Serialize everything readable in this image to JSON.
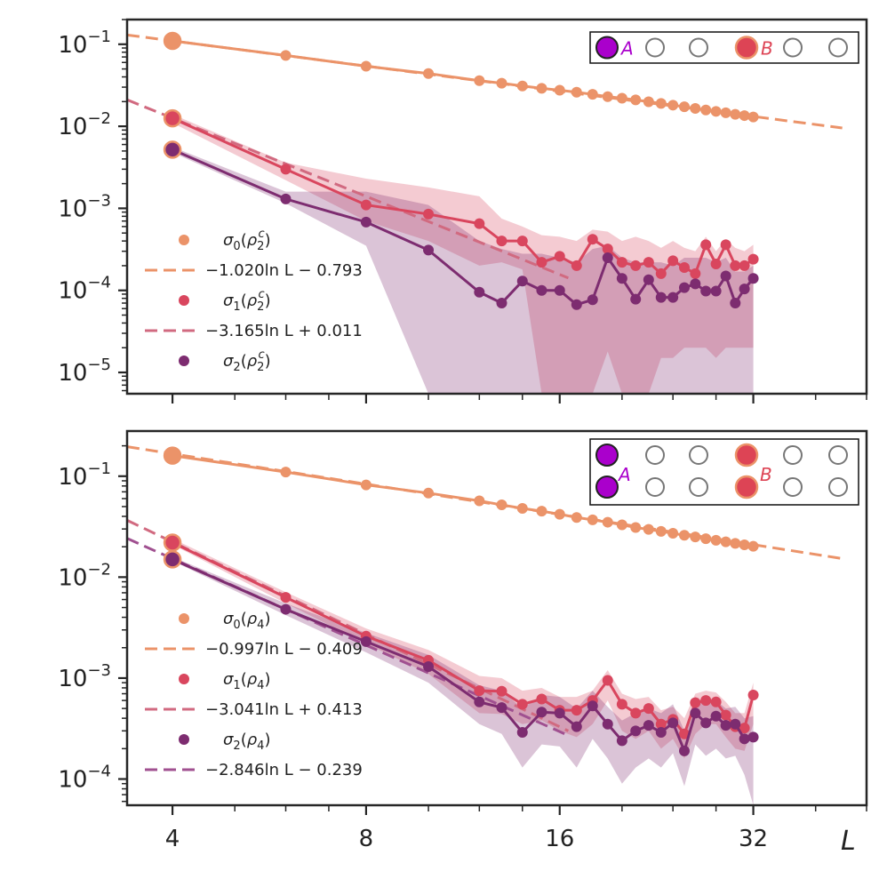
{
  "chart_data": [
    {
      "type": "line",
      "panel": "top",
      "xscale": "log2",
      "yscale": "log10",
      "xlim": [
        3.4,
        48
      ],
      "ylim": [
        5.5e-06,
        0.2
      ],
      "xlabel": "L",
      "xticks": [
        4,
        8,
        16,
        32
      ],
      "xtick_labels": [
        "4",
        "8",
        "16",
        "32"
      ],
      "yticks": [
        0.1,
        0.01,
        0.001,
        0.0001,
        1e-05
      ],
      "ytick_labels": [
        {
          "base": "10",
          "exp": "−1"
        },
        {
          "base": "10",
          "exp": "−2"
        },
        {
          "base": "10",
          "exp": "−3"
        },
        {
          "base": "10",
          "exp": "−4"
        },
        {
          "base": "10",
          "exp": "−5"
        }
      ],
      "series": [
        {
          "name": "σ0(ρ2c)",
          "color": "#eb9369",
          "x": [
            4,
            6,
            8,
            10,
            12,
            13,
            14,
            15,
            16,
            17,
            18,
            19,
            20,
            21,
            22,
            23,
            24,
            25,
            26,
            27,
            28,
            29,
            30,
            31,
            32
          ],
          "y": [
            0.11,
            0.073,
            0.054,
            0.044,
            0.036,
            0.0335,
            0.031,
            0.029,
            0.0275,
            0.026,
            0.0245,
            0.023,
            0.022,
            0.021,
            0.0199,
            0.019,
            0.0181,
            0.0173,
            0.0165,
            0.0158,
            0.0152,
            0.0146,
            0.014,
            0.0135,
            0.013
          ],
          "first_marker": "large"
        },
        {
          "name": "σ1(ρ2c)",
          "color": "#d9465e",
          "x": [
            4,
            6,
            8,
            10,
            12,
            13,
            14,
            15,
            16,
            17,
            18,
            19,
            20,
            21,
            22,
            23,
            24,
            25,
            26,
            27,
            28,
            29,
            30,
            31,
            32
          ],
          "y": [
            0.0125,
            0.003,
            0.0011,
            0.00085,
            0.00065,
            0.0004,
            0.0004,
            0.00022,
            0.00026,
            0.0002,
            0.00042,
            0.00032,
            0.00022,
            0.0002,
            0.00022,
            0.00016,
            0.00023,
            0.00019,
            0.00016,
            0.00036,
            0.00021,
            0.00036,
            0.0002,
            0.0002,
            0.00024
          ],
          "band_lower": [
            0.011,
            0.0022,
            0.0007,
            0.0004,
            0.0002,
            0.00022,
            0.00018,
            5.5e-06,
            5.5e-06,
            5.5e-06,
            5.5e-06,
            1.8e-05,
            5.5e-06,
            5.5e-06,
            5.5e-06,
            1.5e-05,
            1.5e-05,
            2e-05,
            2e-05,
            2e-05,
            1.5e-05,
            2e-05,
            2e-05,
            2e-05,
            2e-05
          ],
          "band_upper": [
            0.014,
            0.0036,
            0.0023,
            0.0018,
            0.0014,
            0.00075,
            0.0006,
            0.00047,
            0.00045,
            0.0004,
            0.00055,
            0.00052,
            0.0004,
            0.00045,
            0.0004,
            0.00033,
            0.0004,
            0.00033,
            0.0003,
            0.00045,
            0.0003,
            0.00042,
            0.00033,
            0.0003,
            0.00036
          ],
          "first_marker": "large"
        },
        {
          "name": "σ2(ρ2c)",
          "color": "#7d2c70",
          "x": [
            4,
            6,
            8,
            10,
            12,
            13,
            14,
            15,
            16,
            17,
            18,
            19,
            20,
            21,
            22,
            23,
            24,
            25,
            26,
            27,
            28,
            29,
            30,
            31,
            32
          ],
          "y": [
            0.0052,
            0.0013,
            0.00068,
            0.00031,
            9.5e-05,
            7e-05,
            0.00013,
            0.0001,
            0.0001,
            6.7e-05,
            7.7e-05,
            0.00025,
            0.00014,
            7.8e-05,
            0.000135,
            8.2e-05,
            8.2e-05,
            0.000108,
            0.00012,
            9.8e-05,
            9.8e-05,
            0.00015,
            7e-05,
            0.000104,
            0.00014
          ],
          "band_lower": [
            0.0048,
            0.00115,
            0.00035,
            5.5e-06,
            5.5e-06,
            5.5e-06,
            5.5e-06,
            5.5e-06,
            5.5e-06,
            5.5e-06,
            5.5e-06,
            5.5e-06,
            5.5e-06,
            5.5e-06,
            5.5e-06,
            5.5e-06,
            5.5e-06,
            5.5e-06,
            5.5e-06,
            5.5e-06,
            5.5e-06,
            5.5e-06,
            5.5e-06,
            5.5e-06,
            5.5e-06
          ],
          "band_upper": [
            0.0056,
            0.0016,
            0.0016,
            0.0011,
            0.0004,
            0.00032,
            0.00028,
            0.00028,
            0.00025,
            0.00022,
            0.00032,
            0.00035,
            0.00025,
            0.00022,
            0.00022,
            0.00022,
            0.0002,
            0.00025,
            0.00025,
            0.00025,
            0.00022,
            0.00025,
            0.00017,
            0.00017,
            0.0002
          ],
          "first_marker": "large"
        }
      ],
      "fits": [
        {
          "label": "−1.020ln L − 0.793",
          "color": "#eb9369",
          "slope": -1.02,
          "intercept": -0.793,
          "x_range": [
            3.4,
            44
          ]
        },
        {
          "label": "−3.165ln L + 0.011",
          "color": "#d16a80",
          "slope": -3.165,
          "intercept": 0.011,
          "x_range": [
            3.4,
            16.5
          ]
        }
      ],
      "legend": [
        {
          "kind": "dot",
          "color": "#eb9369",
          "base": "σ",
          "sub": "0",
          "arg": "ρ",
          "arg_sub": "2",
          "arg_sup": "c"
        },
        {
          "kind": "dash",
          "color": "#eb9369",
          "text": "−1.020ln L − 0.793"
        },
        {
          "kind": "dot",
          "color": "#d9465e",
          "base": "σ",
          "sub": "1",
          "arg": "ρ",
          "arg_sub": "2",
          "arg_sup": "c"
        },
        {
          "kind": "dash",
          "color": "#d16a80",
          "text": "−3.165ln L + 0.011"
        },
        {
          "kind": "dot",
          "color": "#7d2c70",
          "base": "σ",
          "sub": "2",
          "arg": "ρ",
          "arg_sub": "2",
          "arg_sup": "c"
        }
      ],
      "legend_position": "lower-left",
      "inset": {
        "rows": 1,
        "label_a": "A",
        "label_b": "B",
        "color_a": "#aa00cc",
        "color_b": "#dd4455"
      }
    },
    {
      "type": "line",
      "panel": "bottom",
      "xscale": "log2",
      "yscale": "log10",
      "xlim": [
        3.4,
        48
      ],
      "ylim": [
        5.5e-05,
        0.28
      ],
      "xlabel": "L",
      "xticks": [
        4,
        8,
        16,
        32
      ],
      "xtick_labels": [
        "4",
        "8",
        "16",
        "32"
      ],
      "yticks": [
        0.1,
        0.01,
        0.001,
        0.0001
      ],
      "ytick_labels": [
        {
          "base": "10",
          "exp": "−1"
        },
        {
          "base": "10",
          "exp": "−2"
        },
        {
          "base": "10",
          "exp": "−3"
        },
        {
          "base": "10",
          "exp": "−4"
        }
      ],
      "series": [
        {
          "name": "σ0(ρ4)",
          "color": "#eb9369",
          "x": [
            4,
            6,
            8,
            10,
            12,
            13,
            14,
            15,
            16,
            17,
            18,
            19,
            20,
            21,
            22,
            23,
            24,
            25,
            26,
            27,
            28,
            29,
            30,
            31,
            32
          ],
          "y": [
            0.16,
            0.11,
            0.082,
            0.068,
            0.057,
            0.052,
            0.048,
            0.045,
            0.042,
            0.039,
            0.037,
            0.035,
            0.033,
            0.031,
            0.0297,
            0.0284,
            0.0272,
            0.026,
            0.025,
            0.024,
            0.0232,
            0.0224,
            0.0216,
            0.0209,
            0.0202
          ],
          "first_marker": "large"
        },
        {
          "name": "σ1(ρ4)",
          "color": "#d9465e",
          "x": [
            4,
            6,
            8,
            10,
            12,
            13,
            14,
            15,
            16,
            17,
            18,
            19,
            20,
            21,
            22,
            23,
            24,
            25,
            26,
            27,
            28,
            29,
            30,
            31,
            32
          ],
          "y": [
            0.022,
            0.0063,
            0.0026,
            0.0015,
            0.00075,
            0.00074,
            0.00055,
            0.00062,
            0.00048,
            0.00048,
            0.0006,
            0.00095,
            0.00055,
            0.00045,
            0.0005,
            0.00035,
            0.00039,
            0.00028,
            0.00057,
            0.0006,
            0.00058,
            0.00043,
            0.00033,
            0.00032,
            0.00068
          ],
          "band_lower": [
            0.021,
            0.0055,
            0.0022,
            0.0011,
            0.00045,
            0.00044,
            0.00035,
            0.00038,
            0.0003,
            0.00026,
            0.00035,
            0.0006,
            0.0003,
            0.00025,
            0.0003,
            0.0002,
            0.00025,
            0.00016,
            0.00028,
            0.00035,
            0.00035,
            0.00026,
            0.0002,
            0.00019,
            0.00035
          ],
          "band_upper": [
            0.024,
            0.0071,
            0.0031,
            0.0019,
            0.00105,
            0.001,
            0.00075,
            0.0008,
            0.00065,
            0.00065,
            0.00075,
            0.0012,
            0.0007,
            0.00062,
            0.00065,
            0.00048,
            0.00052,
            0.0004,
            0.0007,
            0.00075,
            0.00072,
            0.00058,
            0.00045,
            0.00045,
            0.0009
          ],
          "first_marker": "large"
        },
        {
          "name": "σ2(ρ4)",
          "color": "#7d2c70",
          "x": [
            4,
            6,
            8,
            10,
            12,
            13,
            14,
            15,
            16,
            17,
            18,
            19,
            20,
            21,
            22,
            23,
            24,
            25,
            26,
            27,
            28,
            29,
            30,
            31,
            32
          ],
          "y": [
            0.015,
            0.0048,
            0.0023,
            0.0013,
            0.00058,
            0.00051,
            0.00029,
            0.00046,
            0.00045,
            0.00033,
            0.00053,
            0.00035,
            0.00024,
            0.0003,
            0.00034,
            0.00029,
            0.00036,
            0.00019,
            0.00045,
            0.00036,
            0.00042,
            0.00034,
            0.00035,
            0.00025,
            0.00026
          ],
          "band_lower": [
            0.0145,
            0.0042,
            0.0018,
            0.0009,
            0.00035,
            0.00028,
            0.00013,
            0.00022,
            0.00021,
            0.00013,
            0.00025,
            0.00016,
            9e-05,
            0.00013,
            0.00016,
            0.00013,
            0.00018,
            8.5e-05,
            0.00022,
            0.00017,
            0.0002,
            0.00016,
            0.00017,
            0.00011,
            5.5e-05
          ],
          "band_upper": [
            0.0158,
            0.0055,
            0.0028,
            0.0017,
            0.00085,
            0.00075,
            0.0005,
            0.00068,
            0.00065,
            0.0005,
            0.00075,
            0.00052,
            0.00038,
            0.00045,
            0.0005,
            0.00045,
            0.00055,
            0.0003,
            0.00065,
            0.00055,
            0.0006,
            0.0005,
            0.00052,
            0.0004,
            0.00042
          ],
          "first_marker": "large"
        }
      ],
      "fits": [
        {
          "label": "−0.997ln L − 0.409",
          "color": "#eb9369",
          "slope": -0.997,
          "intercept": -0.409,
          "x_range": [
            3.4,
            44
          ]
        },
        {
          "label": "−3.041ln L + 0.413",
          "color": "#d16a80",
          "slope": -3.041,
          "intercept": 0.413,
          "x_range": [
            3.4,
            16.5
          ]
        },
        {
          "label": "−2.846ln L − 0.239",
          "color": "#a05090",
          "slope": -2.846,
          "intercept": -0.239,
          "x_range": [
            3.4,
            16.5
          ]
        }
      ],
      "legend": [
        {
          "kind": "dot",
          "color": "#eb9369",
          "base": "σ",
          "sub": "0",
          "arg": "ρ",
          "arg_sub": "4",
          "arg_sup": ""
        },
        {
          "kind": "dash",
          "color": "#eb9369",
          "text": "−0.997ln L − 0.409"
        },
        {
          "kind": "dot",
          "color": "#d9465e",
          "base": "σ",
          "sub": "1",
          "arg": "ρ",
          "arg_sub": "4",
          "arg_sup": ""
        },
        {
          "kind": "dash",
          "color": "#d16a80",
          "text": "−3.041ln L + 0.413"
        },
        {
          "kind": "dot",
          "color": "#7d2c70",
          "base": "σ",
          "sub": "2",
          "arg": "ρ",
          "arg_sub": "4",
          "arg_sup": ""
        },
        {
          "kind": "dash",
          "color": "#a05090",
          "text": "−2.846ln L − 0.239"
        }
      ],
      "legend_position": "lower-left",
      "inset": {
        "rows": 2,
        "label_a": "A",
        "label_b": "B",
        "color_a": "#aa00cc",
        "color_b": "#dd4455"
      }
    }
  ]
}
